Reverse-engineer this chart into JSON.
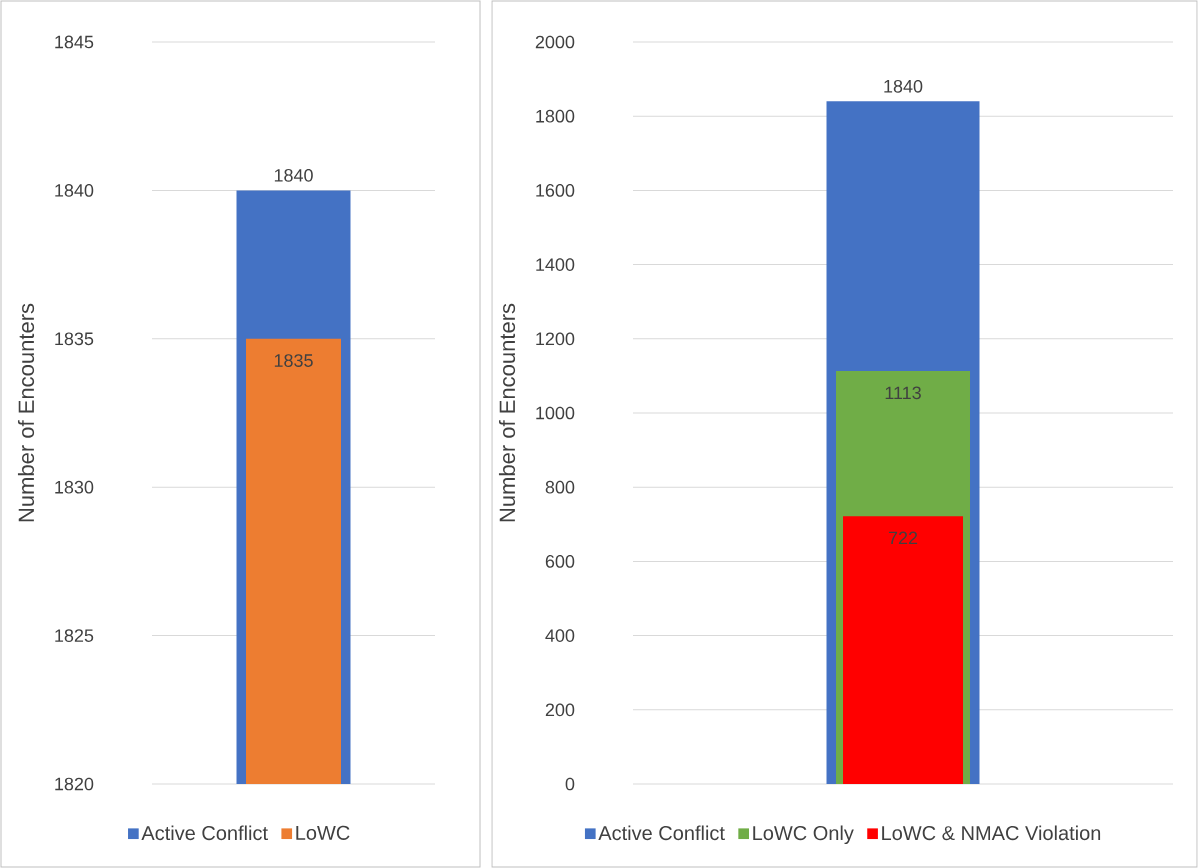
{
  "chart_data": [
    {
      "type": "bar",
      "ylabel": "Number of Encounters",
      "categories": [
        null
      ],
      "series": [
        {
          "name": "Active Conflict",
          "color": "#4472c4",
          "values": [
            1840
          ]
        },
        {
          "name": "LoWC",
          "color": "#ed7d31",
          "values": [
            1835
          ]
        }
      ],
      "ylim": [
        1820,
        1845
      ],
      "yticks": [
        1820,
        1825,
        1830,
        1835,
        1840,
        1845
      ],
      "grid": "y",
      "legend": "bottom",
      "tick_labels": "y",
      "data_labels": true
    },
    {
      "type": "bar",
      "ylabel": "Number of Encounters",
      "categories": [
        null
      ],
      "series": [
        {
          "name": "Active Conflict",
          "color": "#4472c4",
          "values": [
            1840
          ]
        },
        {
          "name": "LoWC Only",
          "color": "#70ad47",
          "values": [
            1113
          ]
        },
        {
          "name": "LoWC & NMAC Violation",
          "color": "#ff0000",
          "values": [
            722
          ]
        }
      ],
      "ylim": [
        0,
        2000
      ],
      "yticks": [
        0,
        200,
        400,
        600,
        800,
        1000,
        1200,
        1400,
        1600,
        1800,
        2000
      ],
      "grid": "y",
      "legend": "bottom",
      "tick_labels": "y",
      "data_labels": true
    }
  ]
}
